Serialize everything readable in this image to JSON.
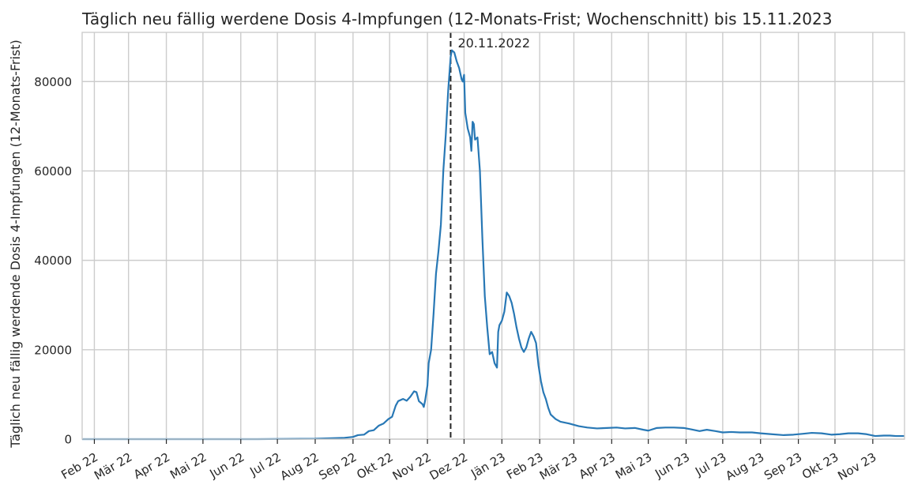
{
  "chart_data": {
    "type": "line",
    "title": "Täglich neu fällig werdene Dosis 4-Impfungen (12-Monats-Frist; Wochenschnitt) bis 15.11.2023",
    "xlabel": "",
    "ylabel": "Täglich neu fällig werdende Dosis 4-Impfungen (12-Monats-Frist)",
    "xlim": [
      "2022-01-22",
      "2023-11-27"
    ],
    "ylim": [
      0,
      91000
    ],
    "grid": true,
    "x_ticks": [
      {
        "date": "2022-02-01",
        "label": "Feb 22"
      },
      {
        "date": "2022-03-01",
        "label": "Mär 22"
      },
      {
        "date": "2022-04-01",
        "label": "Apr 22"
      },
      {
        "date": "2022-05-01",
        "label": "Mai 22"
      },
      {
        "date": "2022-06-01",
        "label": "Jun 22"
      },
      {
        "date": "2022-07-01",
        "label": "Jul 22"
      },
      {
        "date": "2022-08-01",
        "label": "Aug 22"
      },
      {
        "date": "2022-09-01",
        "label": "Sep 22"
      },
      {
        "date": "2022-10-01",
        "label": "Okt 22"
      },
      {
        "date": "2022-11-01",
        "label": "Nov 22"
      },
      {
        "date": "2022-12-01",
        "label": "Dez 22"
      },
      {
        "date": "2023-01-01",
        "label": "Jän 23"
      },
      {
        "date": "2023-02-01",
        "label": "Feb 23"
      },
      {
        "date": "2023-03-01",
        "label": "Mär 23"
      },
      {
        "date": "2023-04-01",
        "label": "Apr 23"
      },
      {
        "date": "2023-05-01",
        "label": "Mai 23"
      },
      {
        "date": "2023-06-01",
        "label": "Jun 23"
      },
      {
        "date": "2023-07-01",
        "label": "Jul 23"
      },
      {
        "date": "2023-08-01",
        "label": "Aug 23"
      },
      {
        "date": "2023-09-01",
        "label": "Sep 23"
      },
      {
        "date": "2023-10-01",
        "label": "Okt 23"
      },
      {
        "date": "2023-11-01",
        "label": "Nov 23"
      }
    ],
    "y_ticks": [
      {
        "value": 0,
        "label": "0"
      },
      {
        "value": 20000,
        "label": "20000"
      },
      {
        "value": 40000,
        "label": "40000"
      },
      {
        "value": 60000,
        "label": "60000"
      },
      {
        "value": 80000,
        "label": "80000"
      }
    ],
    "vline": {
      "date": "2022-11-20",
      "label": "20.11.2022"
    },
    "series": [
      {
        "color": "#2878b5",
        "points": [
          [
            "2022-01-22",
            0
          ],
          [
            "2022-06-15",
            0
          ],
          [
            "2022-08-01",
            100
          ],
          [
            "2022-08-25",
            300
          ],
          [
            "2022-09-01",
            500
          ],
          [
            "2022-09-05",
            900
          ],
          [
            "2022-09-10",
            1000
          ],
          [
            "2022-09-14",
            1800
          ],
          [
            "2022-09-18",
            2000
          ],
          [
            "2022-09-22",
            3000
          ],
          [
            "2022-09-26",
            3500
          ],
          [
            "2022-09-30",
            4500
          ],
          [
            "2022-10-03",
            5000
          ],
          [
            "2022-10-06",
            7500
          ],
          [
            "2022-10-08",
            8500
          ],
          [
            "2022-10-12",
            9000
          ],
          [
            "2022-10-15",
            8600
          ],
          [
            "2022-10-18",
            9500
          ],
          [
            "2022-10-21",
            10700
          ],
          [
            "2022-10-23",
            10500
          ],
          [
            "2022-10-25",
            8500
          ],
          [
            "2022-10-28",
            7800
          ],
          [
            "2022-10-29",
            7200
          ],
          [
            "2022-10-30",
            8500
          ],
          [
            "2022-11-01",
            12000
          ],
          [
            "2022-11-02",
            17000
          ],
          [
            "2022-11-04",
            20000
          ],
          [
            "2022-11-06",
            28000
          ],
          [
            "2022-11-08",
            37000
          ],
          [
            "2022-11-10",
            42000
          ],
          [
            "2022-11-12",
            48000
          ],
          [
            "2022-11-14",
            60000
          ],
          [
            "2022-11-16",
            68000
          ],
          [
            "2022-11-18",
            78000
          ],
          [
            "2022-11-20",
            85500
          ],
          [
            "2022-11-21",
            87000
          ],
          [
            "2022-11-23",
            86500
          ],
          [
            "2022-11-25",
            84500
          ],
          [
            "2022-11-27",
            83000
          ],
          [
            "2022-11-29",
            80500
          ],
          [
            "2022-11-30",
            80000
          ],
          [
            "2022-12-01",
            81500
          ],
          [
            "2022-12-02",
            73000
          ],
          [
            "2022-12-04",
            69500
          ],
          [
            "2022-12-06",
            67500
          ],
          [
            "2022-12-07",
            64500
          ],
          [
            "2022-12-08",
            71000
          ],
          [
            "2022-12-09",
            70500
          ],
          [
            "2022-12-10",
            67000
          ],
          [
            "2022-12-12",
            67500
          ],
          [
            "2022-12-14",
            60000
          ],
          [
            "2022-12-16",
            45000
          ],
          [
            "2022-12-18",
            32000
          ],
          [
            "2022-12-20",
            25000
          ],
          [
            "2022-12-22",
            19000
          ],
          [
            "2022-12-24",
            19500
          ],
          [
            "2022-12-26",
            17000
          ],
          [
            "2022-12-28",
            16000
          ],
          [
            "2022-12-29",
            24000
          ],
          [
            "2022-12-30",
            25500
          ],
          [
            "2023-01-01",
            26500
          ],
          [
            "2023-01-03",
            28500
          ],
          [
            "2023-01-05",
            32800
          ],
          [
            "2023-01-07",
            32000
          ],
          [
            "2023-01-09",
            30500
          ],
          [
            "2023-01-11",
            28000
          ],
          [
            "2023-01-13",
            25000
          ],
          [
            "2023-01-15",
            22500
          ],
          [
            "2023-01-17",
            20500
          ],
          [
            "2023-01-19",
            19500
          ],
          [
            "2023-01-21",
            20500
          ],
          [
            "2023-01-23",
            22500
          ],
          [
            "2023-01-25",
            24000
          ],
          [
            "2023-01-27",
            23000
          ],
          [
            "2023-01-29",
            21500
          ],
          [
            "2023-01-31",
            16500
          ],
          [
            "2023-02-02",
            13000
          ],
          [
            "2023-02-04",
            10500
          ],
          [
            "2023-02-06",
            9000
          ],
          [
            "2023-02-08",
            7000
          ],
          [
            "2023-02-10",
            5500
          ],
          [
            "2023-02-14",
            4500
          ],
          [
            "2023-02-18",
            3900
          ],
          [
            "2023-02-25",
            3500
          ],
          [
            "2023-03-05",
            2900
          ],
          [
            "2023-03-12",
            2600
          ],
          [
            "2023-03-20",
            2400
          ],
          [
            "2023-03-28",
            2500
          ],
          [
            "2023-04-05",
            2600
          ],
          [
            "2023-04-12",
            2400
          ],
          [
            "2023-04-20",
            2500
          ],
          [
            "2023-04-27",
            2100
          ],
          [
            "2023-05-01",
            1900
          ],
          [
            "2023-05-08",
            2500
          ],
          [
            "2023-05-15",
            2600
          ],
          [
            "2023-05-22",
            2600
          ],
          [
            "2023-05-30",
            2500
          ],
          [
            "2023-06-05",
            2200
          ],
          [
            "2023-06-12",
            1800
          ],
          [
            "2023-06-18",
            2100
          ],
          [
            "2023-06-25",
            1800
          ],
          [
            "2023-07-01",
            1500
          ],
          [
            "2023-07-08",
            1600
          ],
          [
            "2023-07-15",
            1500
          ],
          [
            "2023-07-25",
            1500
          ],
          [
            "2023-08-01",
            1300
          ],
          [
            "2023-08-10",
            1100
          ],
          [
            "2023-08-20",
            900
          ],
          [
            "2023-08-28",
            1000
          ],
          [
            "2023-09-05",
            1200
          ],
          [
            "2023-09-12",
            1400
          ],
          [
            "2023-09-20",
            1300
          ],
          [
            "2023-09-28",
            1000
          ],
          [
            "2023-10-05",
            1100
          ],
          [
            "2023-10-12",
            1300
          ],
          [
            "2023-10-20",
            1300
          ],
          [
            "2023-10-27",
            1100
          ],
          [
            "2023-11-03",
            700
          ],
          [
            "2023-11-10",
            800
          ],
          [
            "2023-11-15",
            800
          ],
          [
            "2023-11-20",
            700
          ],
          [
            "2023-11-27",
            700
          ]
        ]
      }
    ]
  }
}
